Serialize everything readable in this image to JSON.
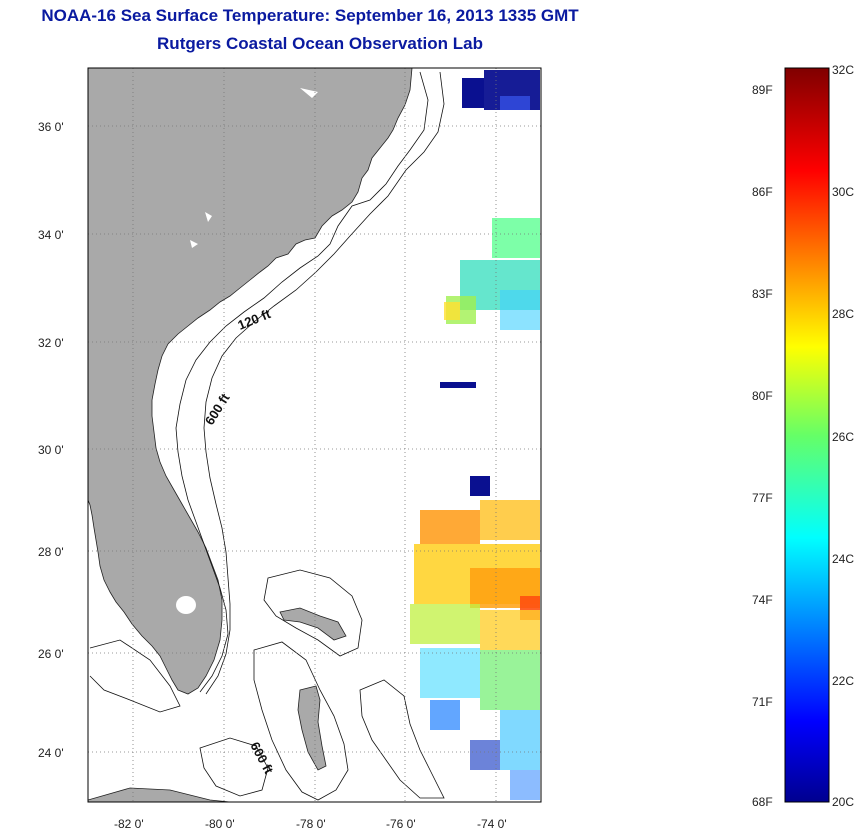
{
  "header": {
    "title": "NOAA-16 Sea Surface Temperature:  September 16, 2013 1335 GMT",
    "subtitle": "Rutgers Coastal Ocean Observation Lab"
  },
  "map": {
    "lat_ticks": [
      "24 0'",
      "26 0'",
      "28 0'",
      "30 0'",
      "32 0'",
      "34 0'",
      "36 0'"
    ],
    "lon_ticks": [
      "-82 0'",
      "-80 0'",
      "-78 0'",
      "-76 0'",
      "-74 0'"
    ],
    "lat_range": [
      23,
      37.1
    ],
    "lon_range": [
      -83,
      -73
    ],
    "contour_labels": [
      "120 ft",
      "600 ft",
      "600 ft"
    ],
    "land_color": "#a9a9a9",
    "grid": true
  },
  "colorbar": {
    "f_labels": [
      "89F",
      "86F",
      "83F",
      "80F",
      "77F",
      "74F",
      "71F",
      "68F"
    ],
    "c_labels": [
      "32C",
      "30C",
      "28C",
      "26C",
      "24C",
      "22C",
      "20C"
    ],
    "range_c": [
      20,
      32
    ]
  }
}
